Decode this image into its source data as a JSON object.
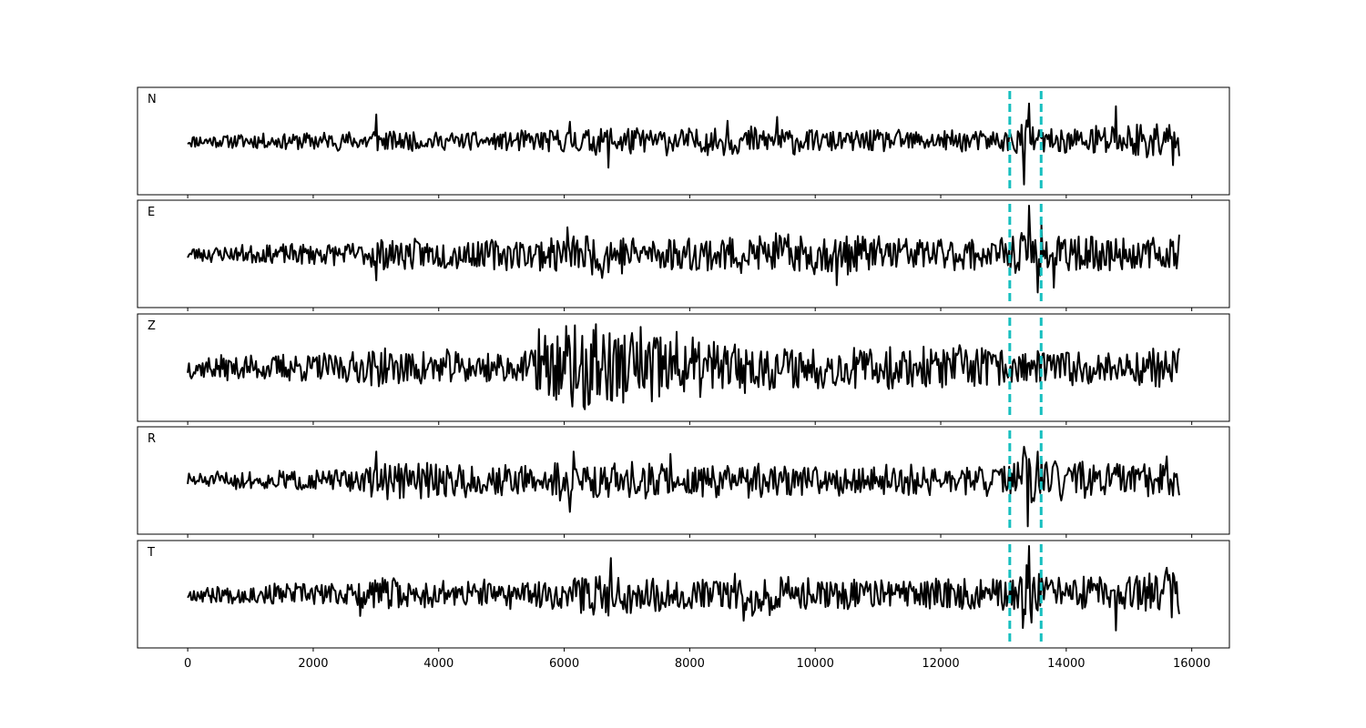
{
  "chart_data": {
    "type": "line",
    "layout": "5 vertically stacked panels sharing the x axis",
    "x_axis": {
      "range": [
        -800,
        16600
      ],
      "ticks": [
        0,
        2000,
        4000,
        6000,
        8000,
        10000,
        12000,
        14000,
        16000
      ],
      "tick_labels": [
        "0",
        "2000",
        "4000",
        "6000",
        "8000",
        "10000",
        "12000",
        "14000",
        "16000"
      ]
    },
    "y_axis": {
      "visible": false,
      "range": [
        -1,
        1
      ]
    },
    "grid": false,
    "line_color": "#000000",
    "marker_color": "#17bfbf",
    "trace_points": 800,
    "markers": [
      {
        "style": "dashed",
        "x": 13100
      },
      {
        "style": "dashed",
        "x": 13600
      }
    ],
    "channels": [
      {
        "name": "N",
        "seed": 11,
        "y_range": [
          -1.0,
          1.0
        ],
        "envelope": [
          [
            0,
            0.12
          ],
          [
            1500,
            0.16
          ],
          [
            2800,
            0.2
          ],
          [
            3000,
            0.3
          ],
          [
            3200,
            0.18
          ],
          [
            5000,
            0.18
          ],
          [
            6000,
            0.25
          ],
          [
            6600,
            0.3
          ],
          [
            8000,
            0.25
          ],
          [
            9400,
            0.3
          ],
          [
            10000,
            0.22
          ],
          [
            12000,
            0.2
          ],
          [
            13100,
            0.2
          ],
          [
            13400,
            0.45
          ],
          [
            13600,
            0.22
          ],
          [
            14600,
            0.35
          ],
          [
            15800,
            0.4
          ]
        ],
        "spikes": [
          [
            3000,
            0.55
          ],
          [
            6100,
            0.4
          ],
          [
            6700,
            -0.55
          ],
          [
            8600,
            0.42
          ],
          [
            9400,
            0.5
          ],
          [
            13400,
            0.78
          ],
          [
            13320,
            -0.9
          ],
          [
            14800,
            0.72
          ],
          [
            15700,
            -0.5
          ]
        ]
      },
      {
        "name": "E",
        "seed": 23,
        "y_range": [
          -1.0,
          1.0
        ],
        "envelope": [
          [
            0,
            0.15
          ],
          [
            2800,
            0.22
          ],
          [
            3000,
            0.3
          ],
          [
            5500,
            0.3
          ],
          [
            6000,
            0.4
          ],
          [
            6800,
            0.4
          ],
          [
            8000,
            0.35
          ],
          [
            10300,
            0.4
          ],
          [
            12000,
            0.32
          ],
          [
            13100,
            0.3
          ],
          [
            13400,
            0.5
          ],
          [
            13700,
            0.35
          ],
          [
            15800,
            0.32
          ]
        ],
        "spikes": [
          [
            3000,
            -0.55
          ],
          [
            6050,
            0.55
          ],
          [
            6600,
            -0.5
          ],
          [
            10350,
            -0.65
          ],
          [
            13400,
            1.0
          ],
          [
            13550,
            -0.8
          ],
          [
            13600,
            0.6
          ],
          [
            13800,
            -0.7
          ],
          [
            15800,
            0.4
          ]
        ]
      },
      {
        "name": "Z",
        "seed": 37,
        "y_range": [
          -1.0,
          1.0
        ],
        "envelope": [
          [
            0,
            0.22
          ],
          [
            2800,
            0.3
          ],
          [
            3000,
            0.38
          ],
          [
            5400,
            0.3
          ],
          [
            5600,
            0.65
          ],
          [
            6000,
            0.85
          ],
          [
            6600,
            0.9
          ],
          [
            7200,
            0.8
          ],
          [
            7800,
            0.7
          ],
          [
            8500,
            0.5
          ],
          [
            10000,
            0.4
          ],
          [
            11500,
            0.4
          ],
          [
            12500,
            0.45
          ],
          [
            13100,
            0.35
          ],
          [
            15800,
            0.35
          ]
        ],
        "spikes": [
          [
            5600,
            0.8
          ],
          [
            6300,
            -0.8
          ],
          [
            6500,
            0.9
          ],
          [
            7400,
            -0.7
          ],
          [
            15800,
            0.4
          ]
        ]
      },
      {
        "name": "R",
        "seed": 51,
        "y_range": [
          -1.0,
          1.0
        ],
        "envelope": [
          [
            0,
            0.15
          ],
          [
            2800,
            0.22
          ],
          [
            3000,
            0.35
          ],
          [
            5400,
            0.3
          ],
          [
            6000,
            0.4
          ],
          [
            6600,
            0.35
          ],
          [
            8000,
            0.35
          ],
          [
            10000,
            0.3
          ],
          [
            12500,
            0.3
          ],
          [
            13100,
            0.3
          ],
          [
            13400,
            0.6
          ],
          [
            13650,
            0.4
          ],
          [
            15800,
            0.35
          ]
        ],
        "spikes": [
          [
            3000,
            0.6
          ],
          [
            6100,
            -0.65
          ],
          [
            6150,
            0.6
          ],
          [
            7700,
            0.55
          ],
          [
            13380,
            -0.95
          ],
          [
            13320,
            0.7
          ],
          [
            13550,
            0.6
          ],
          [
            15600,
            0.5
          ]
        ]
      },
      {
        "name": "T",
        "seed": 67,
        "y_range": [
          -1.0,
          1.0
        ],
        "envelope": [
          [
            0,
            0.15
          ],
          [
            2700,
            0.25
          ],
          [
            3000,
            0.35
          ],
          [
            4000,
            0.25
          ],
          [
            6000,
            0.3
          ],
          [
            6700,
            0.45
          ],
          [
            8000,
            0.3
          ],
          [
            8800,
            0.45
          ],
          [
            10000,
            0.3
          ],
          [
            12000,
            0.3
          ],
          [
            13100,
            0.3
          ],
          [
            13400,
            0.6
          ],
          [
            13700,
            0.3
          ],
          [
            14600,
            0.35
          ],
          [
            15800,
            0.45
          ]
        ],
        "spikes": [
          [
            2750,
            -0.45
          ],
          [
            6750,
            0.75
          ],
          [
            8850,
            -0.55
          ],
          [
            13400,
            1.0
          ],
          [
            13300,
            -0.7
          ],
          [
            14800,
            -0.75
          ],
          [
            15600,
            0.55
          ]
        ]
      }
    ]
  }
}
